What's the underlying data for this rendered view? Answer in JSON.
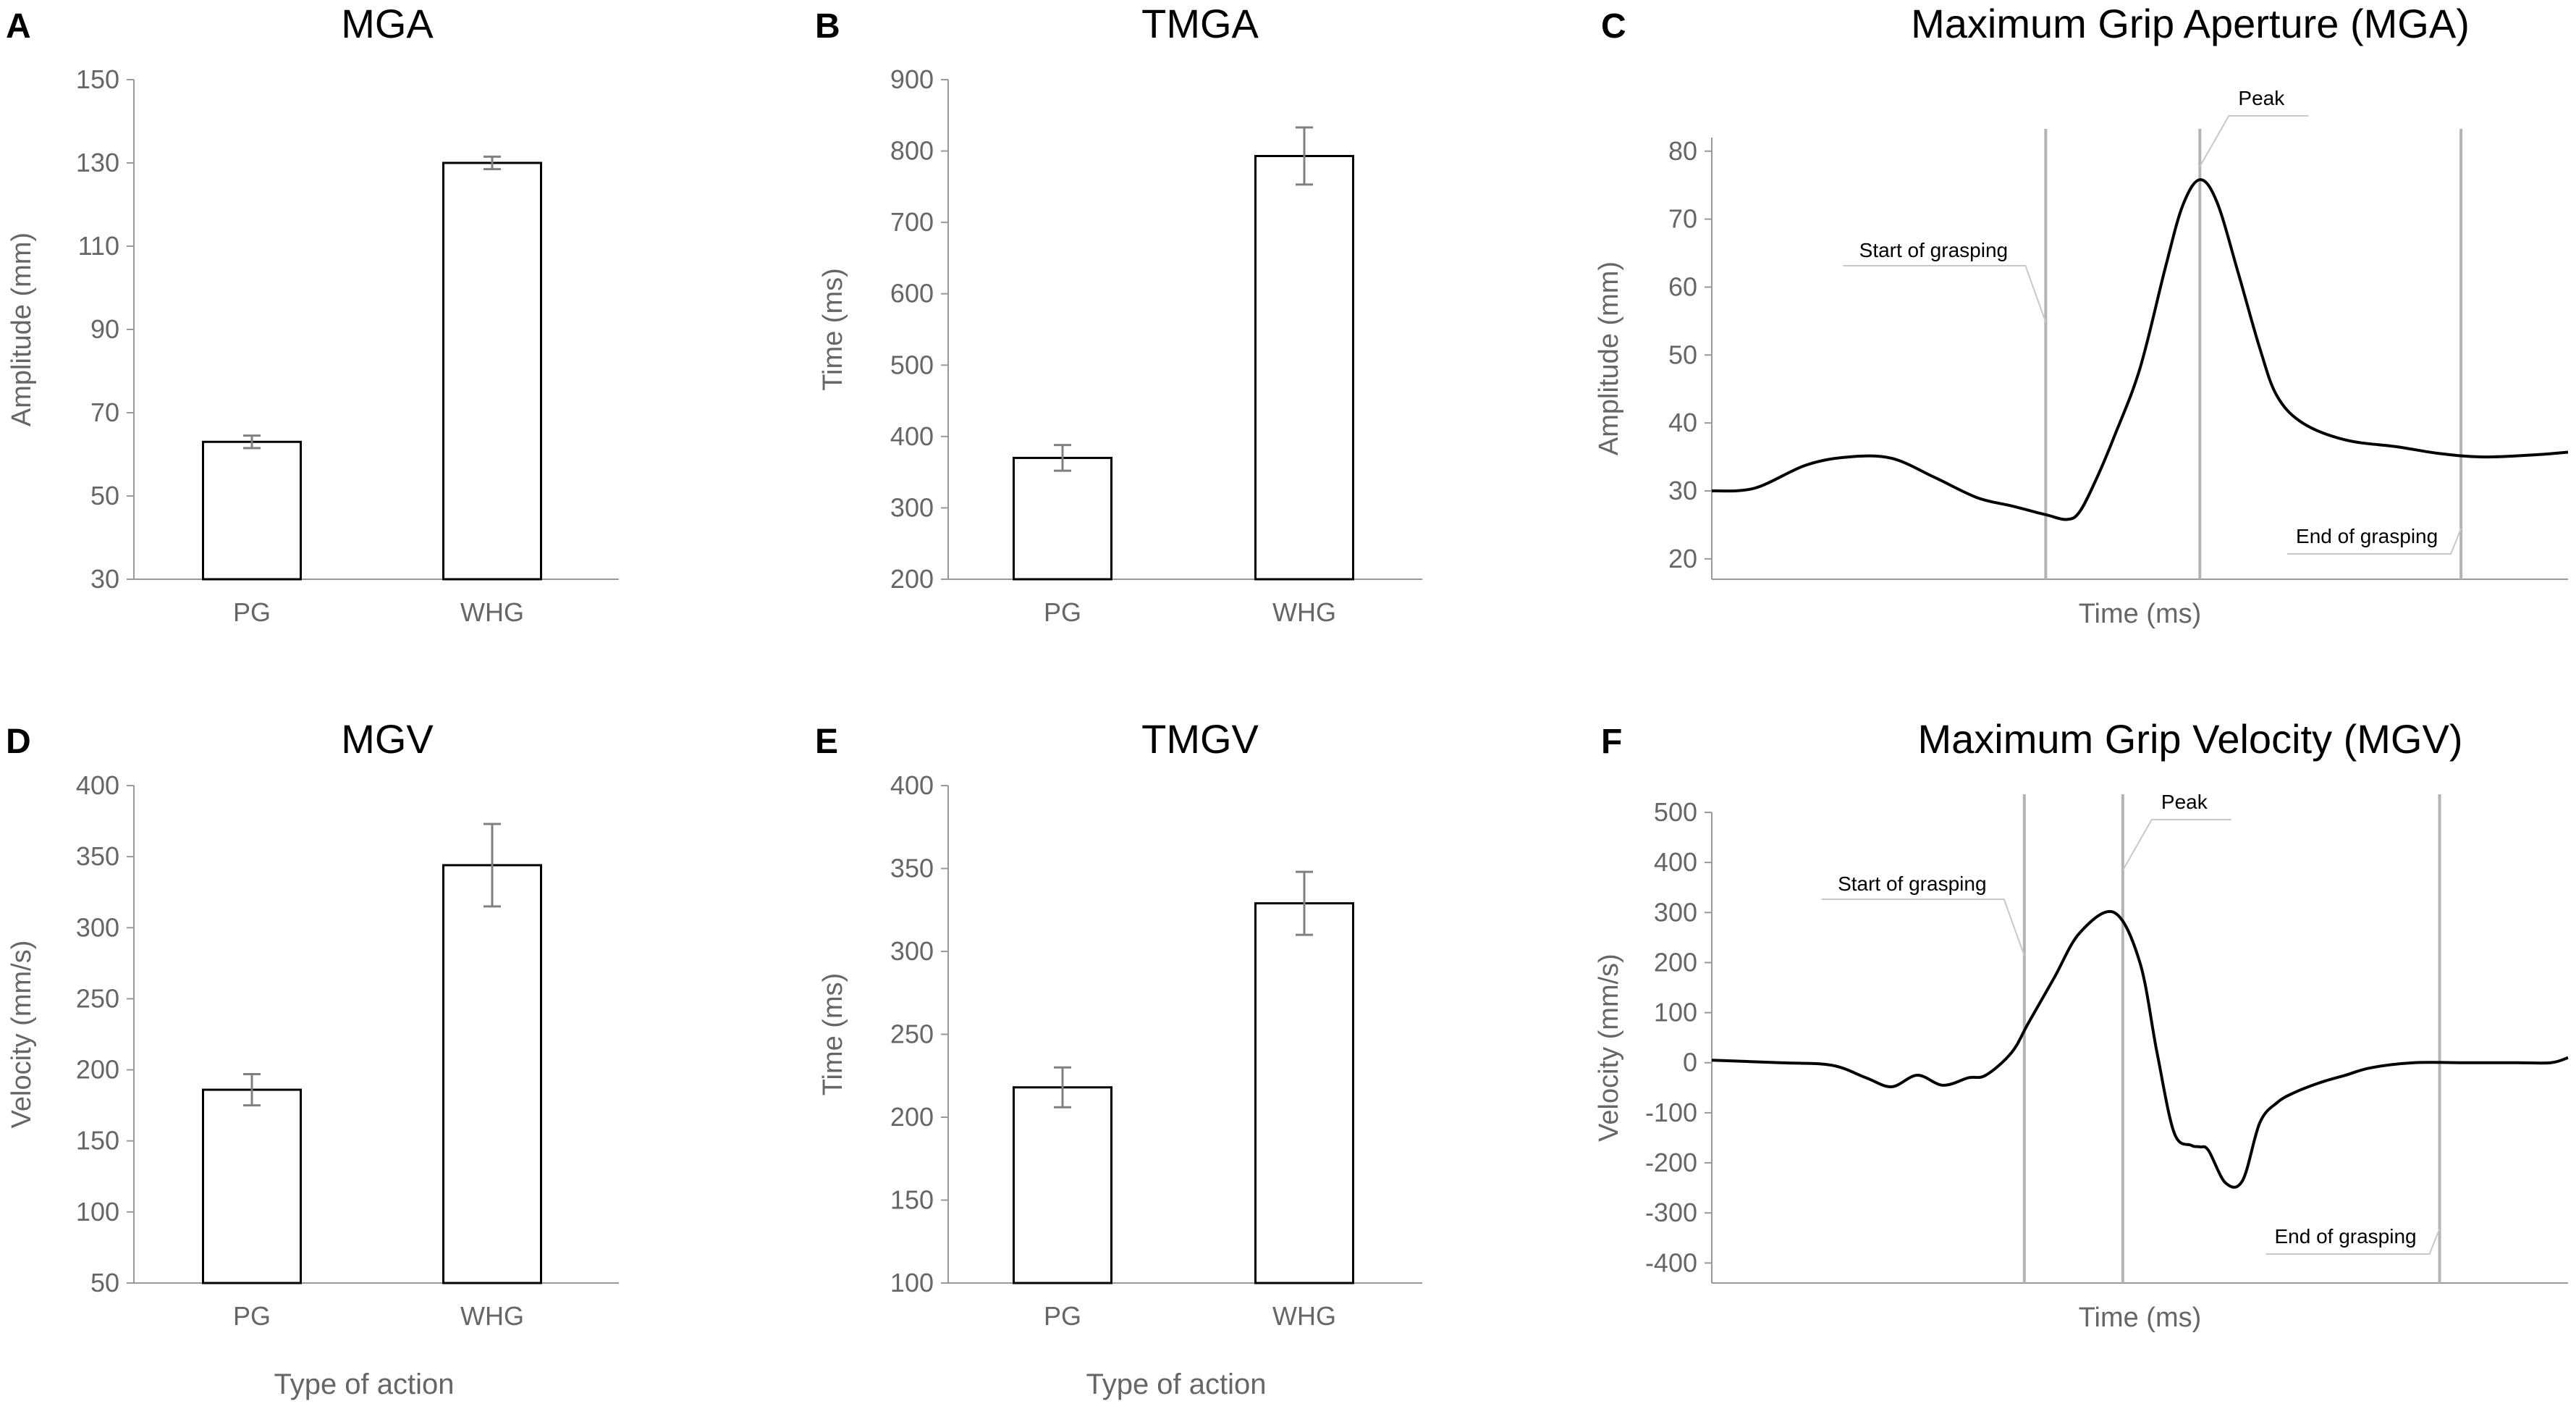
{
  "footer": {
    "left_label": "Type of action",
    "right_label": "Type of action"
  },
  "chart_data": [
    {
      "panel": "A",
      "type": "bar",
      "title": "MGA",
      "categories": [
        "PG",
        "WHG"
      ],
      "values": [
        63,
        130
      ],
      "errors": [
        1.5,
        1.5
      ],
      "ylabel": "Amplitude (mm)",
      "xlabel": "",
      "ylim": [
        30,
        150
      ],
      "yticks": [
        30,
        50,
        70,
        90,
        110,
        130,
        150
      ]
    },
    {
      "panel": "B",
      "type": "bar",
      "title": "TMGA",
      "categories": [
        "PG",
        "WHG"
      ],
      "values": [
        370,
        793
      ],
      "errors": [
        18,
        40
      ],
      "ylabel": "Time (ms)",
      "xlabel": "",
      "ylim": [
        200,
        900
      ],
      "yticks": [
        200,
        300,
        400,
        500,
        600,
        700,
        800,
        900
      ]
    },
    {
      "panel": "C",
      "type": "line",
      "title": "Maximum Grip Aperture (MGA)",
      "ylabel": "Amplitude (mm)",
      "xlabel": "Time (ms)",
      "ylim": [
        17,
        82
      ],
      "yticks": [
        20,
        30,
        40,
        50,
        60,
        70,
        80
      ],
      "xlim": [
        0,
        100
      ],
      "x": [
        0,
        5,
        11,
        16,
        21,
        26,
        31,
        35,
        39,
        41.5,
        43,
        45,
        47,
        50,
        53,
        55,
        57,
        59,
        61.5,
        64,
        66,
        69,
        74,
        80,
        85,
        90,
        96,
        100
      ],
      "y": [
        30,
        30.4,
        33.8,
        35,
        34.8,
        32,
        29,
        27.8,
        26.5,
        25.8,
        27,
        32,
        38,
        48,
        63,
        72,
        75.8,
        72.5,
        62,
        51,
        44,
        40,
        37.5,
        36.5,
        35.5,
        35,
        35.3,
        35.7
      ],
      "annotations": [
        {
          "text": "Start of grasping",
          "x": 39
        },
        {
          "text": "Peak",
          "x": 57
        },
        {
          "text": "End of grasping",
          "x": 88
        }
      ]
    },
    {
      "panel": "D",
      "type": "bar",
      "title": "MGV",
      "categories": [
        "PG",
        "WHG"
      ],
      "values": [
        186,
        344
      ],
      "errors": [
        11,
        29
      ],
      "ylabel": "Velocity (mm/s)",
      "xlabel": "",
      "ylim": [
        50,
        400
      ],
      "yticks": [
        50,
        100,
        150,
        200,
        250,
        300,
        350,
        400
      ]
    },
    {
      "panel": "E",
      "type": "bar",
      "title": "TMGV",
      "categories": [
        "PG",
        "WHG"
      ],
      "values": [
        218,
        329
      ],
      "errors": [
        12,
        19
      ],
      "ylabel": "Time (ms)",
      "xlabel": "",
      "ylim": [
        100,
        400
      ],
      "yticks": [
        100,
        150,
        200,
        250,
        300,
        350,
        400
      ]
    },
    {
      "panel": "F",
      "type": "line",
      "title": "Maximum Grip Velocity (MGV)",
      "ylabel": "Velocity (mm/s)",
      "xlabel": "Time (ms)",
      "ylim": [
        -440,
        500
      ],
      "yticks": [
        -400,
        -300,
        -200,
        -100,
        0,
        100,
        200,
        300,
        400,
        500
      ],
      "xlim": [
        0,
        100
      ],
      "x": [
        0,
        8,
        14,
        18,
        21,
        24,
        27,
        30,
        32,
        35,
        37,
        40,
        43,
        47,
        50,
        52,
        54,
        56,
        57,
        58,
        60,
        62,
        64,
        66,
        68,
        71,
        74,
        77,
        82,
        88,
        94,
        98,
        100
      ],
      "y": [
        5,
        0,
        -5,
        -30,
        -48,
        -25,
        -45,
        -30,
        -25,
        20,
        80,
        170,
        260,
        300,
        200,
        20,
        -140,
        -165,
        -168,
        -175,
        -240,
        -235,
        -120,
        -80,
        -60,
        -40,
        -25,
        -10,
        0,
        0,
        0,
        0,
        10
      ],
      "annotations": [
        {
          "text": "Start of grasping",
          "x": 36.5
        },
        {
          "text": "Peak",
          "x": 48
        },
        {
          "text": "End of grasping",
          "x": 85
        }
      ]
    }
  ]
}
